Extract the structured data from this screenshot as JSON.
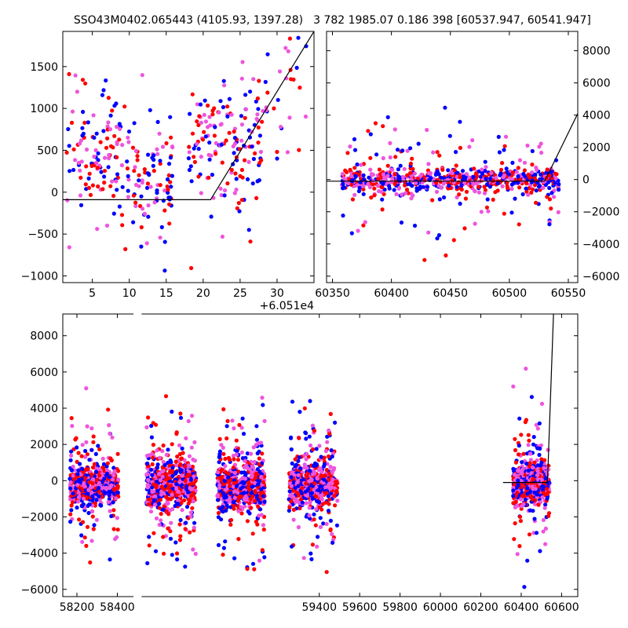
{
  "page": {
    "left_title": "SSO43M0402.065443 (4105.93, 1397.28)",
    "right_title": "3 782 1985.07 0.186 398 [60537.947, 60541.947]"
  },
  "colors": {
    "blue": "#0000ff",
    "red": "#ff0000",
    "magenta": "#ee55dd",
    "model_line": "#000000"
  },
  "chart_data": [
    {
      "type": "scatter",
      "panel": "top-left",
      "xlim": [
        1,
        35
      ],
      "ylim": [
        -1080,
        1920
      ],
      "xticks": [
        5,
        10,
        15,
        20,
        25,
        30
      ],
      "xtick_labels": [
        "5",
        "10",
        "15",
        "20",
        "25",
        "30"
      ],
      "yticks": [
        -1000,
        -500,
        0,
        500,
        1000,
        1500
      ],
      "ytick_labels": [
        "−1000",
        "−500",
        "0",
        "500",
        "1000",
        "1500"
      ],
      "offset_text": "+6.051e4",
      "series_colors": [
        "blue",
        "red",
        "magenta"
      ],
      "model_line": {
        "x": [
          1,
          21,
          35
        ],
        "y": [
          -90,
          -90,
          1920
        ]
      },
      "clusters": [
        {
          "x": [
            1.5,
            10
          ],
          "center": 450,
          "spread": 350,
          "tail": 500,
          "n": 130
        },
        {
          "x": [
            10.5,
            16
          ],
          "center": 150,
          "spread": 330,
          "tail": 450,
          "n": 90
        },
        {
          "x": [
            18,
            28
          ],
          "center": 550,
          "spread": 380,
          "tail": 550,
          "n": 160
        },
        {
          "x": [
            28,
            34
          ],
          "center": 1200,
          "spread": 380,
          "tail": 400,
          "n": 30
        }
      ]
    },
    {
      "type": "scatter",
      "panel": "top-right",
      "xlim": [
        60345,
        60558
      ],
      "ylim": [
        -6400,
        9200
      ],
      "xticks": [
        60350,
        60400,
        60450,
        60500,
        60550
      ],
      "xtick_labels": [
        "60350",
        "60400",
        "60450",
        "60500",
        "60550"
      ],
      "yticks": [
        -6000,
        -4000,
        -2000,
        0,
        2000,
        4000,
        6000,
        8000
      ],
      "ytick_labels": [
        "−6000",
        "−4000",
        "−2000",
        "0",
        "2000",
        "4000",
        "6000",
        "8000"
      ],
      "series_colors": [
        "blue",
        "red",
        "magenta"
      ],
      "model_line": {
        "x": [
          60345,
          60530,
          60558
        ],
        "y": [
          -100,
          -100,
          4100
        ]
      },
      "clusters": [
        {
          "x": [
            60358,
            60542
          ],
          "center": 0,
          "spread": 380,
          "tail": 1800,
          "n": 700
        }
      ]
    },
    {
      "type": "scatter",
      "panel": "bottom",
      "xlim": [
        58130,
        60680
      ],
      "ylim": [
        -6400,
        9200
      ],
      "xticks": [
        58200,
        58400,
        59400,
        59600,
        59800,
        60000,
        60200,
        60400,
        60600
      ],
      "xtick_labels": [
        "58200",
        "58400",
        "59400",
        "59600",
        "59800",
        "60000",
        "60200",
        "60400",
        "60600"
      ],
      "yticks": [
        -6000,
        -4000,
        -2000,
        0,
        2000,
        4000,
        6000,
        8000
      ],
      "ytick_labels": [
        "−6000",
        "−4000",
        "−2000",
        "0",
        "2000",
        "4000",
        "6000",
        "8000"
      ],
      "series_colors": [
        "blue",
        "red",
        "magenta"
      ],
      "broken_axis_gap": [
        58480,
        58520
      ],
      "model_line": {
        "x": [
          60310,
          60530,
          60560
        ],
        "y": [
          -100,
          -100,
          9200
        ]
      },
      "clusters": [
        {
          "x": [
            58165,
            58405
          ],
          "center": -300,
          "spread": 500,
          "tail": 1900,
          "n": 650
        },
        {
          "x": [
            58545,
            58790
          ],
          "center": -200,
          "spread": 600,
          "tail": 2100,
          "n": 650
        },
        {
          "x": [
            58895,
            59130
          ],
          "center": -300,
          "spread": 600,
          "tail": 1900,
          "n": 650
        },
        {
          "x": [
            59250,
            59490
          ],
          "center": -200,
          "spread": 550,
          "tail": 1900,
          "n": 650
        },
        {
          "x": [
            59670,
            60300
          ],
          "center": 0,
          "spread": 500,
          "tail": 1800,
          "n": 0
        },
        {
          "x": [
            60360,
            60540
          ],
          "center": -100,
          "spread": 500,
          "tail": 1900,
          "n": 600
        }
      ]
    }
  ]
}
